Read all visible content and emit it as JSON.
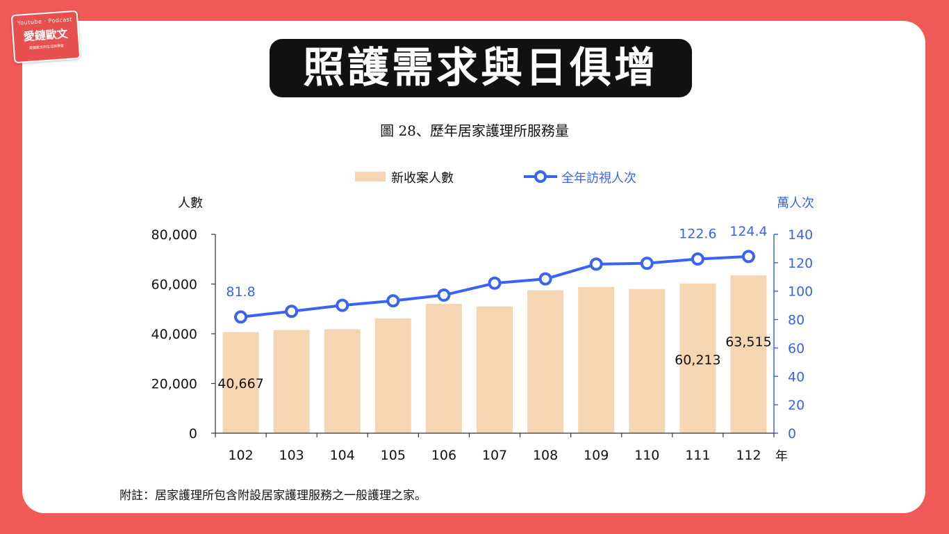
{
  "logo": {
    "line1": "Youtube · Podcast",
    "line2": "愛鏈歐文",
    "line3": "愛鏈歐文的生活與學習"
  },
  "headline": "照護需求與日俱增",
  "chart_data": {
    "type": "bar",
    "title": "圖 28、歷年居家護理所服務量",
    "categories": [
      "102",
      "103",
      "104",
      "105",
      "106",
      "107",
      "108",
      "109",
      "110",
      "111",
      "112"
    ],
    "x_unit": "年",
    "series": [
      {
        "name": "新收案人數",
        "type": "bar",
        "axis": "left",
        "color": "#F6D5B3",
        "values": [
          40667,
          41500,
          41800,
          46200,
          52000,
          51000,
          57500,
          58800,
          58000,
          60213,
          63515
        ]
      },
      {
        "name": "全年訪視人次",
        "type": "line",
        "axis": "right",
        "color": "#3A63F0",
        "values": [
          81.8,
          85.8,
          90.0,
          93.2,
          97.2,
          105.6,
          108.6,
          119.0,
          119.6,
          122.6,
          124.4
        ]
      }
    ],
    "bar_value_labels": [
      {
        "index": 0,
        "text": "40,667"
      },
      {
        "index": 9,
        "text": "60,213"
      },
      {
        "index": 10,
        "text": "63,515"
      }
    ],
    "line_value_labels": [
      {
        "index": 0,
        "text": "81.8"
      },
      {
        "index": 9,
        "text": "122.6"
      },
      {
        "index": 10,
        "text": "124.4"
      }
    ],
    "y_left": {
      "label": "人數",
      "ylim": [
        0,
        80000
      ],
      "ticks": [
        "0",
        "20,000",
        "40,000",
        "60,000",
        "80,000"
      ],
      "tick_values": [
        0,
        20000,
        40000,
        60000,
        80000
      ]
    },
    "y_right": {
      "label": "萬人次",
      "ylim": [
        0,
        140
      ],
      "ticks": [
        "0",
        "20",
        "40",
        "60",
        "80",
        "100",
        "120",
        "140"
      ],
      "tick_values": [
        0,
        20,
        40,
        60,
        80,
        100,
        120,
        140
      ]
    },
    "grid": false,
    "legend_position": "top"
  },
  "footnote": "附註：居家護理所包含附設居家護理服務之一般護理之家。"
}
